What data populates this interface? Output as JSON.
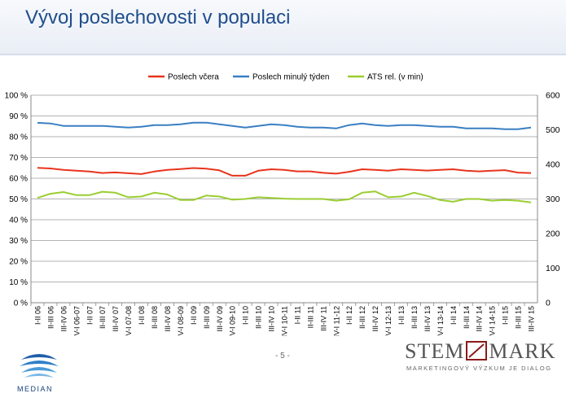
{
  "header": {
    "title": "Vývoj poslechovosti v populaci"
  },
  "footer": {
    "page_number": "- 5 -",
    "median_brand": "MEDIAN",
    "stem_part1": "STEM",
    "stem_part2": "MARK",
    "stem_subtitle": "MARKETINGOVÝ VÝZKUM JE DIALOG"
  },
  "colors": {
    "poslech_vcera": "#e8341c",
    "poslech_tyden": "#3a7fc2",
    "ats": "#9acd32",
    "title": "#1f4e8c"
  },
  "chart_data": {
    "type": "line",
    "title": "",
    "categories": [
      "I-II 06",
      "II-III 06",
      "III-IV 06",
      "IV-I 06-07",
      "I-II 07",
      "II-III 07",
      "III-IV 07",
      "IV-I 07-08",
      "I-II 08",
      "II-III 08",
      "III-IV 08",
      "IV-I 08-09",
      "I-II 09",
      "II-III 09",
      "III-IV 09",
      "IV-I 09-10",
      "I-II 10",
      "II-III 10",
      "III-IV 10",
      "IV-I 10-11",
      "I-II 11",
      "II-III 11",
      "III-IV 11",
      "IV-I 11-12",
      "I-II 12",
      "II-III 12",
      "III-IV 12",
      "IV-I 12-13",
      "I-II 13",
      "II-III 13",
      "III-IV 13",
      "IV-I 13-14",
      "I-II 14",
      "II-III 14",
      "III-IV 14",
      "IV-I 14-15",
      "I-II 15",
      "II-III 15",
      "III-IV 15"
    ],
    "series": [
      {
        "name": "Poslech včera",
        "axis": "left",
        "color": "#e8341c",
        "values": [
          65,
          64.7,
          64,
          63.6,
          63.2,
          62.5,
          62.8,
          62.4,
          62,
          63.2,
          64,
          64.4,
          64.9,
          64.6,
          63.8,
          61.2,
          61.2,
          63.6,
          64.3,
          64,
          63.3,
          63.3,
          62.6,
          62.2,
          63.1,
          64.3,
          64,
          63.6,
          64.3,
          64,
          63.7,
          64,
          64.3,
          63.6,
          63.3,
          63.6,
          63.9,
          62.7,
          62.5
        ]
      },
      {
        "name": "Poslech minulý týden",
        "axis": "left",
        "color": "#3a7fc2",
        "values": [
          86.7,
          86.4,
          85.2,
          85.2,
          85.2,
          85.2,
          84.8,
          84.4,
          84.8,
          85.6,
          85.6,
          86,
          86.8,
          86.8,
          86,
          85.2,
          84.4,
          85.2,
          86,
          85.6,
          84.8,
          84.4,
          84.4,
          84,
          85.6,
          86.4,
          85.6,
          85.2,
          85.6,
          85.6,
          85.2,
          84.8,
          84.8,
          84,
          84,
          84,
          83.6,
          83.6,
          84.4
        ]
      },
      {
        "name": "ATS rel. (v min)",
        "axis": "right",
        "color": "#9acd32",
        "values": [
          303,
          315,
          320,
          311,
          311,
          321,
          318,
          305,
          307,
          318,
          313,
          297,
          297,
          310,
          307,
          298,
          300,
          305,
          303,
          301,
          300,
          300,
          300,
          295,
          299,
          318,
          322,
          305,
          307,
          318,
          309,
          297,
          292,
          300,
          300,
          295,
          297,
          295,
          290
        ]
      }
    ],
    "y_left": {
      "ticks": [
        "0 %",
        "10 %",
        "20 %",
        "30 %",
        "40 %",
        "50 %",
        "60 %",
        "70 %",
        "80 %",
        "90 %",
        "100 %"
      ],
      "range": [
        0,
        100
      ]
    },
    "y_right": {
      "ticks": [
        "0",
        "100",
        "200",
        "300",
        "400",
        "500",
        "600"
      ],
      "range": [
        0,
        600
      ]
    },
    "grid": true,
    "legend_position": "top"
  }
}
